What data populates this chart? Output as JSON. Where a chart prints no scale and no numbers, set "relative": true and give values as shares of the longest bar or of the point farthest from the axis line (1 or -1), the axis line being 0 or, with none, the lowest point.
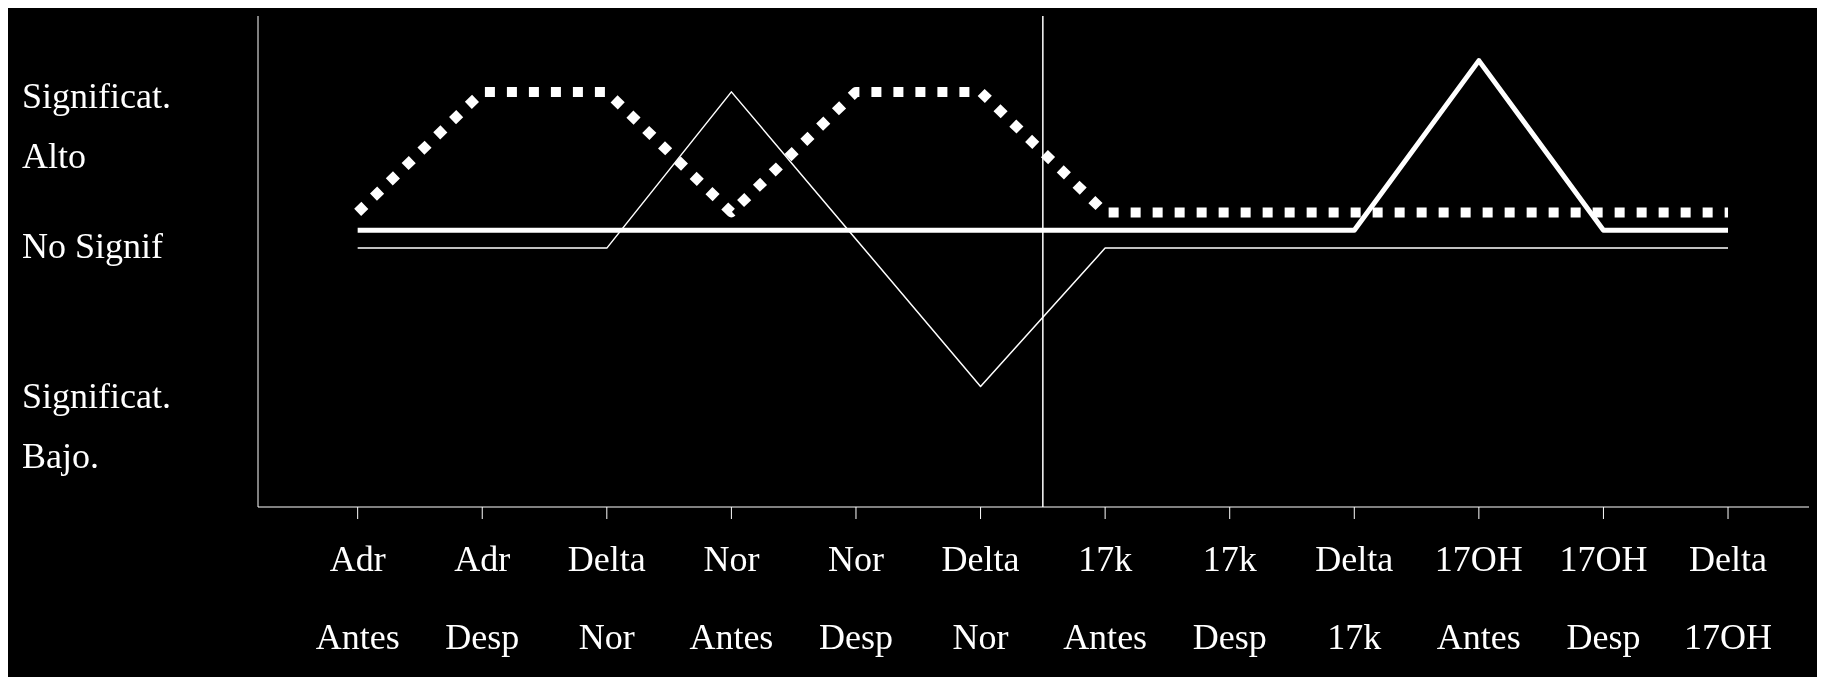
{
  "chart_data": {
    "type": "line",
    "relative": true,
    "categories": [
      "Adr Antes",
      "Adr Desp",
      "Delta Nor",
      "Nor Antes",
      "Nor Desp",
      "Delta Nor",
      "17k Antes",
      "17k Desp",
      "Delta 17k",
      "17OH Antes",
      "17OH Desp",
      "Delta 17OH"
    ],
    "series": [
      {
        "color": "#ffffff",
        "line_style": "dotted",
        "values": [
          0.66,
          0.93,
          0.93,
          0.66,
          0.93,
          0.93,
          0.66,
          0.66,
          0.66,
          0.66,
          0.66,
          0.66
        ]
      },
      {
        "color": "#ffffff",
        "line_style": "solid",
        "values": [
          0.58,
          0.58,
          0.58,
          0.93,
          0.6,
          0.27,
          0.58,
          0.58,
          0.58,
          0.58,
          0.58,
          0.58
        ]
      },
      {
        "color": "#ffffff",
        "line_style": "solid",
        "values": [
          0.62,
          0.62,
          0.62,
          0.62,
          0.62,
          0.62,
          0.62,
          0.62,
          0.62,
          1,
          0.62,
          0.62
        ]
      }
    ],
    "annotations": [
      "Significat.\nAlto",
      "No Signif",
      "Significat.\nBajo."
    ],
    "grid": false,
    "legend": false,
    "marker": "none"
  }
}
